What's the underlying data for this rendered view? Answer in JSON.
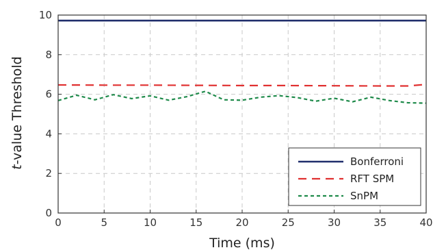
{
  "chart_data": {
    "type": "line",
    "title": "",
    "xlabel": "Time (ms)",
    "ylabel_prefix": "t",
    "ylabel_rest": "-value Threshold",
    "xlim": [
      0,
      40
    ],
    "ylim": [
      0,
      10
    ],
    "xticks": [
      0,
      5,
      10,
      15,
      20,
      25,
      30,
      35,
      40
    ],
    "yticks": [
      0,
      2,
      4,
      6,
      8,
      10
    ],
    "grid": true,
    "legend_position": "bottom-right",
    "series": [
      {
        "name": "Bonferroni",
        "color": "#1f2d6b",
        "style": "solid",
        "x": [
          0,
          40
        ],
        "y": [
          9.72,
          9.72
        ]
      },
      {
        "name": "RFT SPM",
        "color": "#e03030",
        "style": "dashed",
        "x": [
          0,
          5,
          10,
          15,
          20,
          25,
          30,
          35,
          38,
          40
        ],
        "y": [
          6.47,
          6.46,
          6.46,
          6.45,
          6.44,
          6.44,
          6.43,
          6.42,
          6.42,
          6.5
        ]
      },
      {
        "name": "SnPM",
        "color": "#1e8a4a",
        "style": "dotted",
        "x": [
          0,
          2,
          4,
          6,
          8,
          10,
          12,
          14,
          16,
          18,
          20,
          22,
          24,
          26,
          28,
          30,
          32,
          34,
          36,
          38,
          40
        ],
        "y": [
          5.68,
          5.95,
          5.72,
          5.98,
          5.78,
          5.92,
          5.7,
          5.88,
          6.15,
          5.72,
          5.7,
          5.85,
          5.93,
          5.83,
          5.65,
          5.8,
          5.62,
          5.85,
          5.68,
          5.57,
          5.55
        ]
      }
    ]
  }
}
